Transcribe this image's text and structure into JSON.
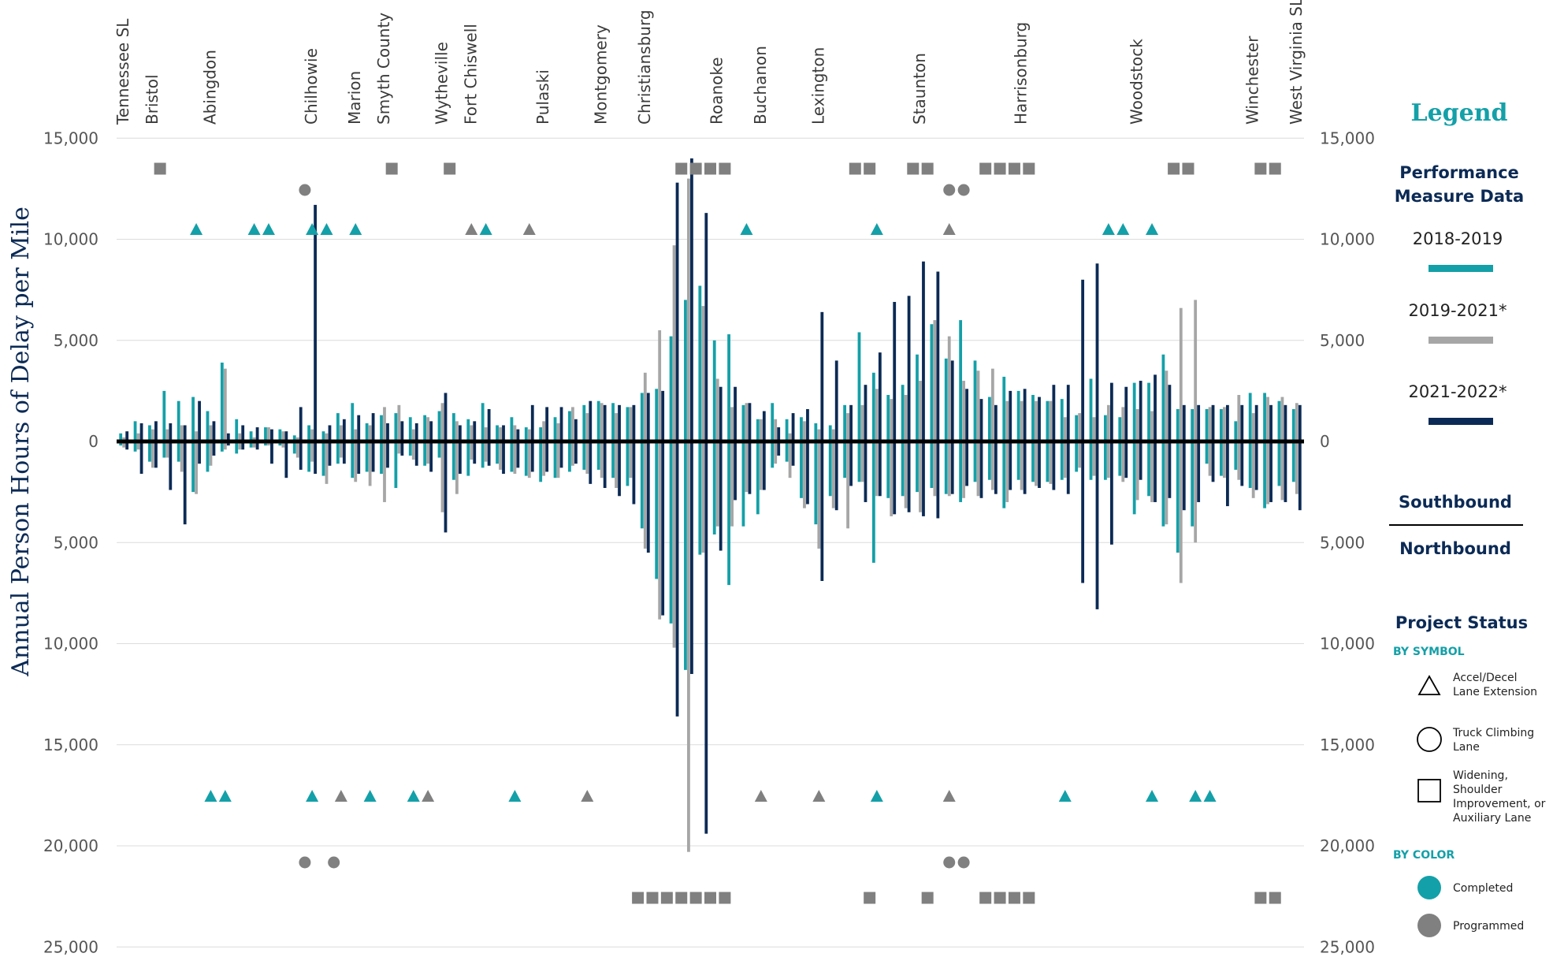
{
  "chart_data": {
    "type": "bar",
    "ylabel": "Annual Person Hours of Delay per Mile",
    "ylim": [
      -25000,
      15000
    ],
    "yticks": [
      15000,
      10000,
      5000,
      0,
      -5000,
      -10000,
      -15000,
      -20000,
      -25000
    ],
    "ytick_labels": [
      "15,000",
      "10,000",
      "5,000",
      "0",
      "5,000",
      "10,000",
      "15,000",
      "20,000",
      "25,000"
    ],
    "locations": [
      "Tennessee SL",
      "Bristol",
      "Abingdon",
      "Chilhowie",
      "Marion",
      "Smyth County",
      "Wytheville",
      "Fort Chiswell",
      "Pulaski",
      "Montgomery",
      "Christiansburg",
      "Roanoke",
      "Buchanon",
      "Lexington",
      "Staunton",
      "Harrisonburg",
      "Woodstock",
      "Winchester",
      "West Virginia SL"
    ],
    "location_index": [
      0,
      2,
      6,
      13,
      16,
      18,
      22,
      24,
      29,
      33,
      36,
      41,
      44,
      48,
      55,
      62,
      70,
      78,
      81
    ],
    "segments": 82,
    "series": [
      {
        "name": "2018-2019",
        "color": "#14a0a8",
        "southbound": [
          400,
          1000,
          800,
          2500,
          2000,
          2200,
          1500,
          3900,
          1100,
          500,
          700,
          600,
          300,
          800,
          500,
          1400,
          1900,
          900,
          1300,
          1400,
          1200,
          1300,
          1500,
          1400,
          1100,
          1900,
          800,
          1200,
          700,
          700,
          1200,
          1500,
          1800,
          2000,
          1900,
          1700,
          2400,
          2600,
          5200,
          7000,
          7700,
          5000,
          5300,
          1800,
          1100,
          1900,
          1100,
          1200,
          900,
          800,
          1800,
          5400,
          3400,
          2300,
          2800,
          4300,
          5800,
          4100,
          6000,
          4000,
          2200,
          3200,
          2500,
          2300,
          2000,
          2100,
          1300,
          3100,
          1300,
          1200,
          2900,
          2900,
          4300,
          1600,
          1600,
          1600,
          1600,
          1000,
          2400,
          2400,
          2000,
          1600
        ],
        "northbound": [
          -200,
          -500,
          -1000,
          -800,
          -1000,
          -2500,
          -1500,
          -500,
          -600,
          -300,
          -200,
          -200,
          -600,
          -1500,
          -1700,
          -1100,
          -1800,
          -1500,
          -1600,
          -2300,
          -700,
          -1200,
          -800,
          -1900,
          -1700,
          -1300,
          -1100,
          -1500,
          -1700,
          -2000,
          -1800,
          -1500,
          -1400,
          -1400,
          -1800,
          -2200,
          -4300,
          -6800,
          -9000,
          -11300,
          -5600,
          -4600,
          -7100,
          -4200,
          -3600,
          -1300,
          -1000,
          -2800,
          -4100,
          -2700,
          -1800,
          -2000,
          -6000,
          -2800,
          -2700,
          -2500,
          -2300,
          -2600,
          -3000,
          -2000,
          -1900,
          -3300,
          -1900,
          -2000,
          -2000,
          -1900,
          -1500,
          -1900,
          -1900,
          -1700,
          -3600,
          -2700,
          -4200,
          -5500,
          -4200,
          -1100,
          -1700,
          -1400,
          -2300,
          -3300,
          -2200,
          -2000
        ]
      },
      {
        "name": "2019-2021*",
        "color": "#a6a6a6",
        "southbound": [
          200,
          400,
          600,
          600,
          800,
          500,
          800,
          3600,
          400,
          200,
          700,
          500,
          200,
          600,
          400,
          800,
          600,
          800,
          1700,
          1800,
          600,
          1200,
          1900,
          1000,
          800,
          700,
          700,
          800,
          600,
          1000,
          900,
          1700,
          1400,
          1900,
          1400,
          1700,
          3400,
          5500,
          9700,
          13000,
          6700,
          3100,
          1700,
          1900,
          1100,
          1100,
          400,
          1000,
          600,
          600,
          1400,
          1800,
          2600,
          2100,
          2300,
          3000,
          6000,
          5200,
          3000,
          3500,
          3600,
          2000,
          2000,
          2000,
          2000,
          1200,
          1400,
          1200,
          1800,
          1700,
          1600,
          1500,
          3500,
          6600,
          7000,
          1700,
          1700,
          2300,
          1400,
          2200,
          2200,
          1900
        ],
        "northbound": [
          -300,
          -400,
          -1300,
          -800,
          -1500,
          -2600,
          -1200,
          -400,
          -400,
          -300,
          -200,
          -300,
          -800,
          -1000,
          -2100,
          -800,
          -2000,
          -2200,
          -3000,
          -600,
          -900,
          -1100,
          -3500,
          -2600,
          -900,
          -1000,
          -1400,
          -1600,
          -1800,
          -1700,
          -1800,
          -1200,
          -1600,
          -1800,
          -2300,
          -1800,
          -5300,
          -8800,
          -10200,
          -20300,
          -5500,
          -4200,
          -4200,
          -2500,
          -2400,
          -1100,
          -1800,
          -3300,
          -5300,
          -3300,
          -4300,
          -2000,
          -2700,
          -3700,
          -3300,
          -3500,
          -2700,
          -2700,
          -2800,
          -2700,
          -2400,
          -3000,
          -2400,
          -2200,
          -2100,
          -1800,
          -1300,
          -1700,
          -1800,
          -2000,
          -2900,
          -3000,
          -4100,
          -7000,
          -5000,
          -1700,
          -1800,
          -1900,
          -2800,
          -3100,
          -2900,
          -2600
        ],
        "note": "approximate"
      },
      {
        "name": "2021-2022*",
        "color": "#0b2a55",
        "southbound": [
          500,
          900,
          1000,
          900,
          800,
          2000,
          1000,
          400,
          800,
          700,
          600,
          500,
          1700,
          11700,
          800,
          1100,
          1300,
          1400,
          900,
          1000,
          900,
          1000,
          2400,
          800,
          1000,
          1600,
          800,
          600,
          1800,
          1700,
          1700,
          1100,
          2000,
          1800,
          1800,
          1800,
          2400,
          2500,
          12800,
          14000,
          11300,
          2700,
          2700,
          1900,
          1500,
          700,
          1400,
          1600,
          6400,
          4000,
          1800,
          2800,
          4400,
          6900,
          7200,
          8900,
          8400,
          4000,
          2600,
          2100,
          1800,
          2500,
          2600,
          2200,
          2800,
          2800,
          8000,
          8800,
          2900,
          2700,
          3000,
          3300,
          2800,
          1800,
          1800,
          1800,
          1800,
          1800,
          1800,
          1800,
          1800,
          1800
        ],
        "northbound": [
          -400,
          -1600,
          -1300,
          -2400,
          -4100,
          -1100,
          -700,
          -200,
          -400,
          -400,
          -1100,
          -1800,
          -1400,
          -1600,
          -1200,
          -1100,
          -1600,
          -1500,
          -1300,
          -700,
          -1200,
          -1500,
          -4500,
          -1600,
          -1100,
          -1200,
          -1600,
          -1300,
          -1500,
          -1500,
          -1300,
          -1100,
          -2100,
          -2300,
          -2700,
          -3100,
          -5500,
          -8600,
          -13600,
          -11500,
          -19400,
          -5400,
          -2900,
          -2600,
          -2400,
          -700,
          -1200,
          -3100,
          -6900,
          -3400,
          -2200,
          -3000,
          -2700,
          -3600,
          -3500,
          -3700,
          -3800,
          -2600,
          -2200,
          -2800,
          -2600,
          -2400,
          -2600,
          -2300,
          -2400,
          -2600,
          -7000,
          -8300,
          -5100,
          -1800,
          -1900,
          -3000,
          -2800,
          -3400,
          -3000,
          -2000,
          -3200,
          -2200,
          -2400,
          -3000,
          -3000,
          -3400
        ],
        "note": "approximate"
      }
    ],
    "projects": {
      "southbound_triangles": [
        {
          "seg": 5,
          "status": "completed"
        },
        {
          "seg": 9,
          "status": "completed"
        },
        {
          "seg": 10,
          "status": "completed"
        },
        {
          "seg": 13,
          "status": "completed"
        },
        {
          "seg": 14,
          "status": "completed"
        },
        {
          "seg": 16,
          "status": "completed"
        },
        {
          "seg": 24,
          "status": "programmed"
        },
        {
          "seg": 25,
          "status": "completed"
        },
        {
          "seg": 28,
          "status": "programmed"
        },
        {
          "seg": 43,
          "status": "completed"
        },
        {
          "seg": 52,
          "status": "completed"
        },
        {
          "seg": 57,
          "status": "programmed"
        },
        {
          "seg": 68,
          "status": "completed"
        },
        {
          "seg": 69,
          "status": "completed"
        },
        {
          "seg": 71,
          "status": "completed"
        }
      ],
      "southbound_circles": [
        {
          "seg": 12.5,
          "status": "programmed"
        },
        {
          "seg": 57,
          "status": "programmed"
        },
        {
          "seg": 58,
          "status": "programmed"
        }
      ],
      "southbound_squares": [
        {
          "seg": 2.5,
          "status": "programmed"
        },
        {
          "seg": 18.5,
          "status": "programmed"
        },
        {
          "seg": 22.5,
          "status": "programmed"
        },
        {
          "seg": 38.5,
          "status": "programmed"
        },
        {
          "seg": 39.5,
          "status": "programmed"
        },
        {
          "seg": 40.5,
          "status": "programmed"
        },
        {
          "seg": 41.5,
          "status": "programmed"
        },
        {
          "seg": 50.5,
          "status": "programmed"
        },
        {
          "seg": 51.5,
          "status": "programmed"
        },
        {
          "seg": 54.5,
          "status": "programmed"
        },
        {
          "seg": 55.5,
          "status": "programmed"
        },
        {
          "seg": 59.5,
          "status": "programmed"
        },
        {
          "seg": 60.5,
          "status": "programmed"
        },
        {
          "seg": 61.5,
          "status": "programmed"
        },
        {
          "seg": 62.5,
          "status": "programmed"
        },
        {
          "seg": 72.5,
          "status": "programmed"
        },
        {
          "seg": 73.5,
          "status": "programmed"
        },
        {
          "seg": 78.5,
          "status": "programmed"
        },
        {
          "seg": 79.5,
          "status": "programmed"
        }
      ],
      "northbound_triangles": [
        {
          "seg": 6,
          "status": "completed"
        },
        {
          "seg": 7,
          "status": "completed"
        },
        {
          "seg": 13,
          "status": "completed"
        },
        {
          "seg": 15,
          "status": "programmed"
        },
        {
          "seg": 17,
          "status": "completed"
        },
        {
          "seg": 20,
          "status": "completed"
        },
        {
          "seg": 21,
          "status": "programmed"
        },
        {
          "seg": 27,
          "status": "completed"
        },
        {
          "seg": 32,
          "status": "programmed"
        },
        {
          "seg": 44,
          "status": "programmed"
        },
        {
          "seg": 48,
          "status": "programmed"
        },
        {
          "seg": 52,
          "status": "completed"
        },
        {
          "seg": 57,
          "status": "programmed"
        },
        {
          "seg": 65,
          "status": "completed"
        },
        {
          "seg": 71,
          "status": "completed"
        },
        {
          "seg": 74,
          "status": "completed"
        },
        {
          "seg": 75,
          "status": "completed"
        }
      ],
      "northbound_circles": [
        {
          "seg": 12.5,
          "status": "programmed"
        },
        {
          "seg": 14.5,
          "status": "programmed"
        },
        {
          "seg": 57,
          "status": "programmed"
        },
        {
          "seg": 58,
          "status": "programmed"
        }
      ],
      "northbound_squares": [
        {
          "seg": 35.5,
          "status": "programmed"
        },
        {
          "seg": 36.5,
          "status": "programmed"
        },
        {
          "seg": 37.5,
          "status": "programmed"
        },
        {
          "seg": 38.5,
          "status": "programmed"
        },
        {
          "seg": 39.5,
          "status": "programmed"
        },
        {
          "seg": 40.5,
          "status": "programmed"
        },
        {
          "seg": 41.5,
          "status": "programmed"
        },
        {
          "seg": 51.5,
          "status": "programmed"
        },
        {
          "seg": 55.5,
          "status": "programmed"
        },
        {
          "seg": 59.5,
          "status": "programmed"
        },
        {
          "seg": 60.5,
          "status": "programmed"
        },
        {
          "seg": 61.5,
          "status": "programmed"
        },
        {
          "seg": 62.5,
          "status": "programmed"
        },
        {
          "seg": 78.5,
          "status": "programmed"
        },
        {
          "seg": 79.5,
          "status": "programmed"
        }
      ]
    },
    "status_colors": {
      "completed": "#14a0a8",
      "programmed": "#808080",
      "divider": "#000000"
    }
  },
  "legend": {
    "title": "Legend",
    "performance_heading": "Performance\nMeasure Data",
    "series": [
      {
        "label": "2018-2019",
        "color": "#14a0a8"
      },
      {
        "label": "2019-2021*",
        "color": "#a6a6a6"
      },
      {
        "label": "2021-2022*",
        "color": "#0b2a55"
      }
    ],
    "southbound": "Southbound",
    "northbound": "Northbound",
    "project_status": "Project Status",
    "by_symbol": "BY SYMBOL",
    "symbols": [
      {
        "icon": "triangle-icon",
        "label": "Accel/Decel\nLane Extension"
      },
      {
        "icon": "circle-icon",
        "label": "Truck Climbing\nLane"
      },
      {
        "icon": "square-icon",
        "label": "Widening,\nShoulder\nImprovement, or\nAuxiliary Lane"
      }
    ],
    "by_color": "BY COLOR",
    "colors": [
      {
        "label": "Completed",
        "color": "#14a0a8"
      },
      {
        "label": "Programmed",
        "color": "#808080"
      }
    ]
  }
}
